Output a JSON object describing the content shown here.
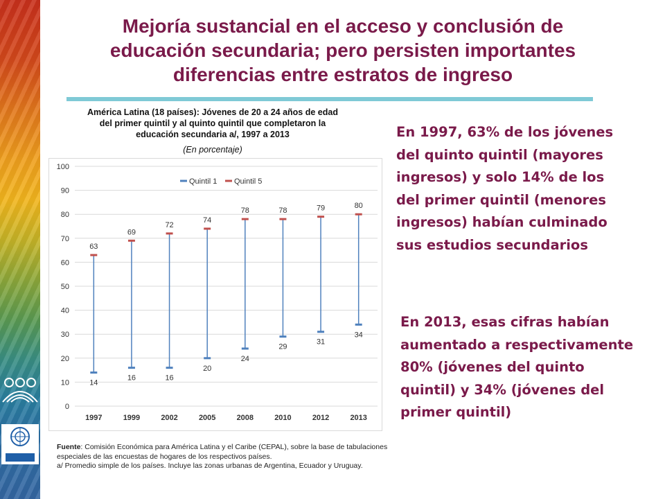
{
  "title_lines": [
    "Mejoría sustancial en el acceso y conclusión de",
    "educación secundaria; pero persisten importantes",
    "diferencias entre estratos de ingreso"
  ],
  "chart_header": {
    "line1": "América Latina (18 países):  Jóvenes de 20 a 24 años de edad",
    "line2": "del primer quintil y al quinto quintil  que completaron la",
    "line3": "educación secundaria a/, 1997 a 2013",
    "subtitle": "(En porcentaje)"
  },
  "paragraph_1_lines": [
    "En 1997, 63% de los jóvenes",
    "del  quinto quintil (mayores",
    "ingresos) y solo 14% de los",
    "del primer quintil (menores",
    "ingresos) habían culminado",
    "sus estudios secundarios"
  ],
  "paragraph_2_lines": [
    "En 2013, esas cifras habían",
    "aumentado a respectivamente",
    "80%  (jóvenes del quinto",
    "quintil) y 34% (jóvenes del",
    "primer  quintil)"
  ],
  "source": {
    "label": "Fuente",
    "text": ": Comisión Económica para América Latina y el Caribe (CEPAL), sobre la base de tabulaciones especiales de las encuestas de hogares de los respectivos países.",
    "note": "a/ Promedio simple de los países. Incluye las zonas urbanas de Argentina, Ecuador y Uruguay."
  },
  "colors": {
    "title": "#7a1a4a",
    "quintil1": "#4f81bd",
    "quintil5": "#c0504d",
    "range_line": "#4f81bd",
    "title_rule": "#7fcad6"
  },
  "chart_data": {
    "type": "range",
    "categories": [
      "1997",
      "1999",
      "2002",
      "2005",
      "2008",
      "2010",
      "2012",
      "2013"
    ],
    "series": [
      {
        "name": "Quintil 1",
        "values": [
          14,
          16,
          16,
          20,
          24,
          29,
          31,
          34
        ]
      },
      {
        "name": "Quintil 5",
        "values": [
          63,
          69,
          72,
          74,
          78,
          78,
          79,
          80
        ]
      }
    ],
    "y_ticks": [
      "0",
      "10",
      "20",
      "30",
      "40",
      "50",
      "60",
      "70",
      "80",
      "90",
      "100"
    ],
    "ylim": [
      0,
      100
    ],
    "grid": true,
    "legend_position": "top"
  }
}
